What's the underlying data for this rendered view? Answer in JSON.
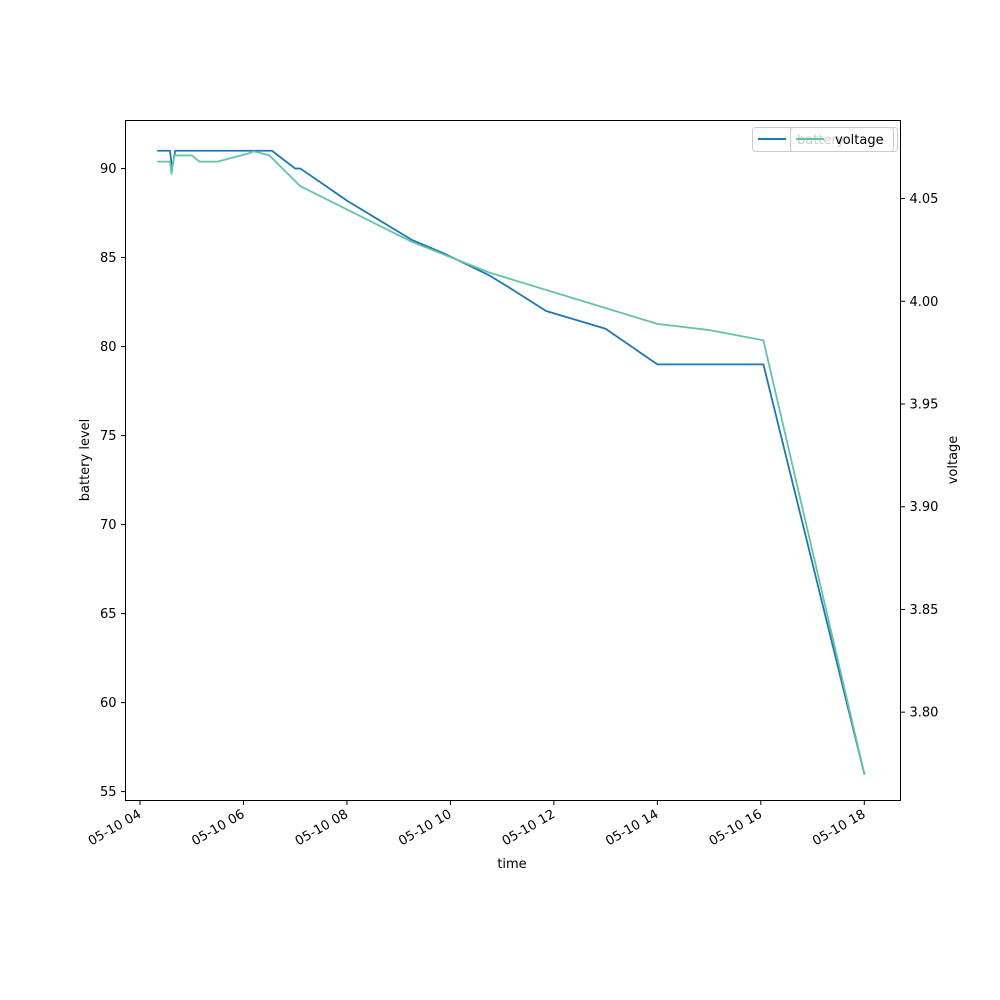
{
  "chart_data": {
    "type": "line",
    "xlabel": "time",
    "ylabel_left": "battery level",
    "ylabel_right": "voltage",
    "x_ticks": [
      "05-10 04",
      "05-10 06",
      "05-10 08",
      "05-10 10",
      "05-10 12",
      "05-10 14",
      "05-10 16",
      "05-10 18"
    ],
    "y_left_ticks": [
      55,
      60,
      65,
      70,
      75,
      80,
      85,
      90
    ],
    "y_right_ticks": [
      "3.80",
      "3.85",
      "3.90",
      "3.95",
      "4.00",
      "4.05"
    ],
    "x_range_hours": [
      3.72,
      18.7
    ],
    "y_left_range": [
      54.5,
      92.7
    ],
    "y_right_range": [
      3.757,
      4.088
    ],
    "legend": {
      "placement": "top-right",
      "entries": [
        "battery",
        "voltage"
      ]
    },
    "series": [
      {
        "name": "battery",
        "axis": "left",
        "color": "#1f77b4",
        "points": [
          [
            4.35,
            91
          ],
          [
            4.58,
            91
          ],
          [
            4.62,
            90
          ],
          [
            4.68,
            91
          ],
          [
            5.0,
            91
          ],
          [
            6.0,
            91
          ],
          [
            6.55,
            91
          ],
          [
            7.0,
            90
          ],
          [
            7.1,
            90
          ],
          [
            7.5,
            89.2
          ],
          [
            8.0,
            88.2
          ],
          [
            9.25,
            86
          ],
          [
            9.9,
            85.2
          ],
          [
            10.75,
            84
          ],
          [
            11.2,
            83.2
          ],
          [
            11.85,
            82
          ],
          [
            13.0,
            81
          ],
          [
            14.0,
            79
          ],
          [
            14.5,
            79
          ],
          [
            15.0,
            79
          ],
          [
            16.05,
            79
          ],
          [
            18.0,
            56
          ]
        ]
      },
      {
        "name": "voltage",
        "axis": "right",
        "color": "#66c2a5",
        "points": [
          [
            4.35,
            4.068
          ],
          [
            4.58,
            4.068
          ],
          [
            4.61,
            4.062
          ],
          [
            4.66,
            4.071
          ],
          [
            5.0,
            4.071
          ],
          [
            5.15,
            4.068
          ],
          [
            5.5,
            4.068
          ],
          [
            6.1,
            4.072
          ],
          [
            6.2,
            4.073
          ],
          [
            6.35,
            4.072
          ],
          [
            6.5,
            4.071
          ],
          [
            7.1,
            4.056
          ],
          [
            9.25,
            4.029
          ],
          [
            10.75,
            4.014
          ],
          [
            14.0,
            3.989
          ],
          [
            15.0,
            3.986
          ],
          [
            16.05,
            3.981
          ],
          [
            18.0,
            3.77
          ]
        ]
      }
    ]
  }
}
